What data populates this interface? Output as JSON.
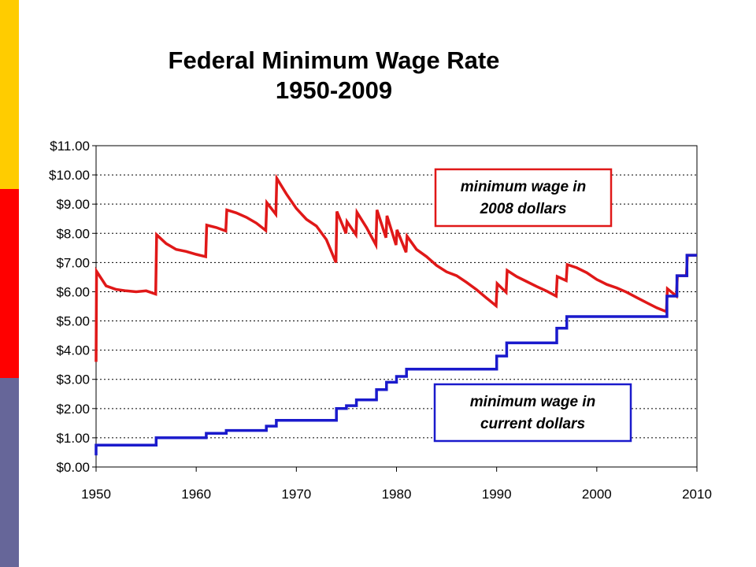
{
  "slide": {
    "side_colors": [
      "#FFCC00",
      "#FF0000",
      "#666699"
    ]
  },
  "chart_data": {
    "type": "line",
    "title": "Federal Minimum Wage Rate",
    "subtitle": "1950-2009",
    "xlim": [
      1950,
      2010
    ],
    "ylim": [
      0,
      11
    ],
    "x_ticks": [
      "1950",
      "1960",
      "1970",
      "1980",
      "1990",
      "2000",
      "2010"
    ],
    "y_ticks": [
      "$0.00",
      "$1.00",
      "$2.00",
      "$3.00",
      "$4.00",
      "$5.00",
      "$6.00",
      "$7.00",
      "$8.00",
      "$9.00",
      "$10.00",
      "$11.00"
    ],
    "grid": "horizontal dotted",
    "series": [
      {
        "name": "minimum wage in 2008 dollars",
        "color": "#E01818",
        "points": [
          [
            1950.0,
            3.6
          ],
          [
            1950.05,
            6.7
          ],
          [
            1951,
            6.2
          ],
          [
            1952,
            6.08
          ],
          [
            1953,
            6.03
          ],
          [
            1954,
            6.0
          ],
          [
            1955,
            6.03
          ],
          [
            1955.95,
            5.92
          ],
          [
            1956.05,
            7.95
          ],
          [
            1957,
            7.65
          ],
          [
            1958,
            7.45
          ],
          [
            1959,
            7.38
          ],
          [
            1960,
            7.28
          ],
          [
            1960.95,
            7.2
          ],
          [
            1961.05,
            8.28
          ],
          [
            1962,
            8.2
          ],
          [
            1962.95,
            8.08
          ],
          [
            1963.05,
            8.8
          ],
          [
            1964,
            8.7
          ],
          [
            1965,
            8.55
          ],
          [
            1966,
            8.35
          ],
          [
            1966.95,
            8.1
          ],
          [
            1967.05,
            9.05
          ],
          [
            1967.95,
            8.65
          ],
          [
            1968.05,
            9.88
          ],
          [
            1969,
            9.35
          ],
          [
            1970,
            8.85
          ],
          [
            1971,
            8.48
          ],
          [
            1972,
            8.25
          ],
          [
            1973,
            7.78
          ],
          [
            1973.95,
            7.0
          ],
          [
            1974.05,
            8.75
          ],
          [
            1974.95,
            8.0
          ],
          [
            1975.05,
            8.4
          ],
          [
            1975.95,
            7.95
          ],
          [
            1976.05,
            8.72
          ],
          [
            1977,
            8.2
          ],
          [
            1977.95,
            7.6
          ],
          [
            1978.05,
            8.8
          ],
          [
            1978.95,
            7.85
          ],
          [
            1979.05,
            8.6
          ],
          [
            1979.95,
            7.6
          ],
          [
            1980.05,
            8.12
          ],
          [
            1980.95,
            7.35
          ],
          [
            1981.05,
            7.9
          ],
          [
            1982,
            7.45
          ],
          [
            1983,
            7.2
          ],
          [
            1984,
            6.9
          ],
          [
            1985,
            6.68
          ],
          [
            1986,
            6.55
          ],
          [
            1987,
            6.32
          ],
          [
            1988,
            6.07
          ],
          [
            1989,
            5.78
          ],
          [
            1989.95,
            5.52
          ],
          [
            1990.05,
            6.28
          ],
          [
            1990.95,
            5.98
          ],
          [
            1991.05,
            6.73
          ],
          [
            1992,
            6.52
          ],
          [
            1993,
            6.35
          ],
          [
            1994,
            6.18
          ],
          [
            1995,
            6.02
          ],
          [
            1995.95,
            5.85
          ],
          [
            1996.05,
            6.52
          ],
          [
            1996.95,
            6.38
          ],
          [
            1997.05,
            6.93
          ],
          [
            1998,
            6.82
          ],
          [
            1999,
            6.65
          ],
          [
            2000,
            6.42
          ],
          [
            2001,
            6.25
          ],
          [
            2002,
            6.13
          ],
          [
            2003,
            5.98
          ],
          [
            2004,
            5.8
          ],
          [
            2005,
            5.62
          ],
          [
            2006,
            5.45
          ],
          [
            2006.95,
            5.32
          ],
          [
            2007.05,
            6.1
          ],
          [
            2007.95,
            5.85
          ],
          [
            2008.05,
            6.55
          ],
          [
            2008.95,
            6.55
          ],
          [
            2009.05,
            7.25
          ],
          [
            2010,
            7.25
          ]
        ]
      },
      {
        "name": "minimum wage in current dollars",
        "color": "#1A1ACC",
        "points": [
          [
            1950.0,
            0.4
          ],
          [
            1950.0,
            0.75
          ],
          [
            1956,
            0.75
          ],
          [
            1956,
            1.0
          ],
          [
            1961,
            1.0
          ],
          [
            1961,
            1.15
          ],
          [
            1963,
            1.15
          ],
          [
            1963,
            1.25
          ],
          [
            1967,
            1.25
          ],
          [
            1967,
            1.4
          ],
          [
            1968,
            1.4
          ],
          [
            1968,
            1.6
          ],
          [
            1974,
            1.6
          ],
          [
            1974,
            2.0
          ],
          [
            1975,
            2.0
          ],
          [
            1975,
            2.1
          ],
          [
            1976,
            2.1
          ],
          [
            1976,
            2.3
          ],
          [
            1978,
            2.3
          ],
          [
            1978,
            2.65
          ],
          [
            1979,
            2.65
          ],
          [
            1979,
            2.9
          ],
          [
            1980,
            2.9
          ],
          [
            1980,
            3.1
          ],
          [
            1981,
            3.1
          ],
          [
            1981,
            3.35
          ],
          [
            1990,
            3.35
          ],
          [
            1990,
            3.8
          ],
          [
            1991,
            3.8
          ],
          [
            1991,
            4.25
          ],
          [
            1996,
            4.25
          ],
          [
            1996,
            4.75
          ],
          [
            1997,
            4.75
          ],
          [
            1997,
            5.15
          ],
          [
            2007,
            5.15
          ],
          [
            2007,
            5.85
          ],
          [
            2008,
            5.85
          ],
          [
            2008,
            6.55
          ],
          [
            2009,
            6.55
          ],
          [
            2009,
            7.25
          ],
          [
            2010,
            7.25
          ]
        ]
      }
    ],
    "annotations": [
      {
        "lines": [
          "minimum wage in",
          "2008 dollars"
        ],
        "color": "#E01818",
        "near": "upper-right"
      },
      {
        "lines": [
          "minimum wage in",
          "current dollars"
        ],
        "color": "#1A1ACC",
        "near": "lower-right"
      }
    ]
  }
}
